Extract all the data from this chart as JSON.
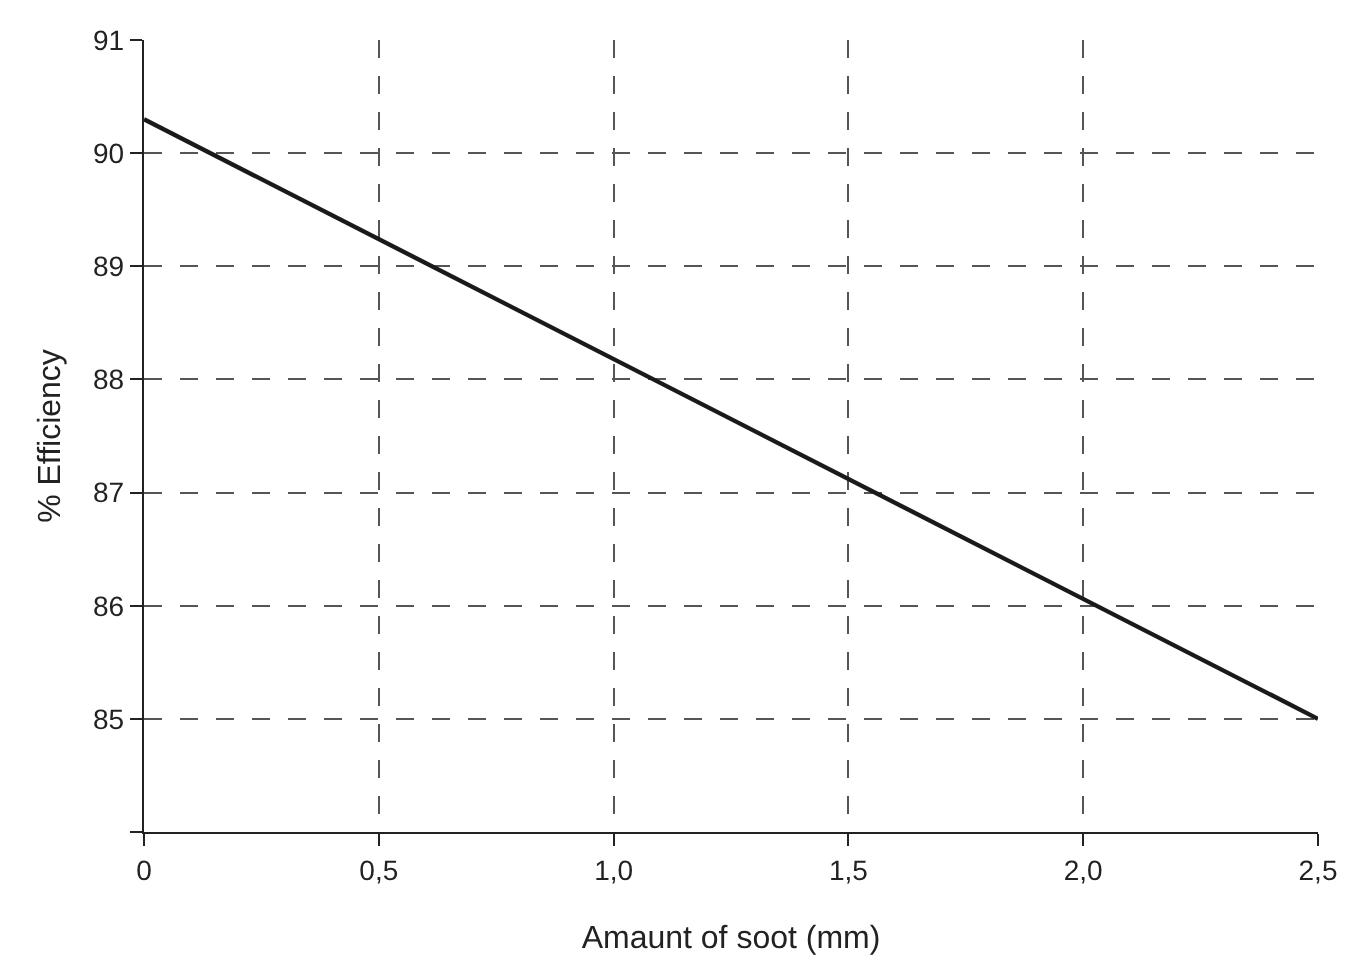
{
  "chart_data": {
    "type": "line",
    "xlabel": "Amaunt of soot (mm)",
    "ylabel": "% Efficiency",
    "x": [
      0,
      2.5
    ],
    "series": [
      {
        "color": "#1a1a1a",
        "values": [
          90.3,
          85.0
        ]
      }
    ],
    "xlim": [
      0,
      2.5
    ],
    "xticks": [
      0,
      {
        "value": 0.5,
        "label": "0,5"
      },
      {
        "value": 1,
        "label": "1,0"
      },
      {
        "value": 1.5,
        "label": "1,5"
      },
      {
        "value": 2,
        "label": "2,0"
      },
      {
        "value": 2.5,
        "label": "2,5"
      }
    ],
    "ylim": [
      84,
      91
    ],
    "yticks": [
      {
        "value": 84,
        "label": null
      },
      85,
      86,
      87,
      88,
      89,
      90,
      91
    ],
    "grid": true,
    "marker": "none",
    "line_style": "solid"
  }
}
